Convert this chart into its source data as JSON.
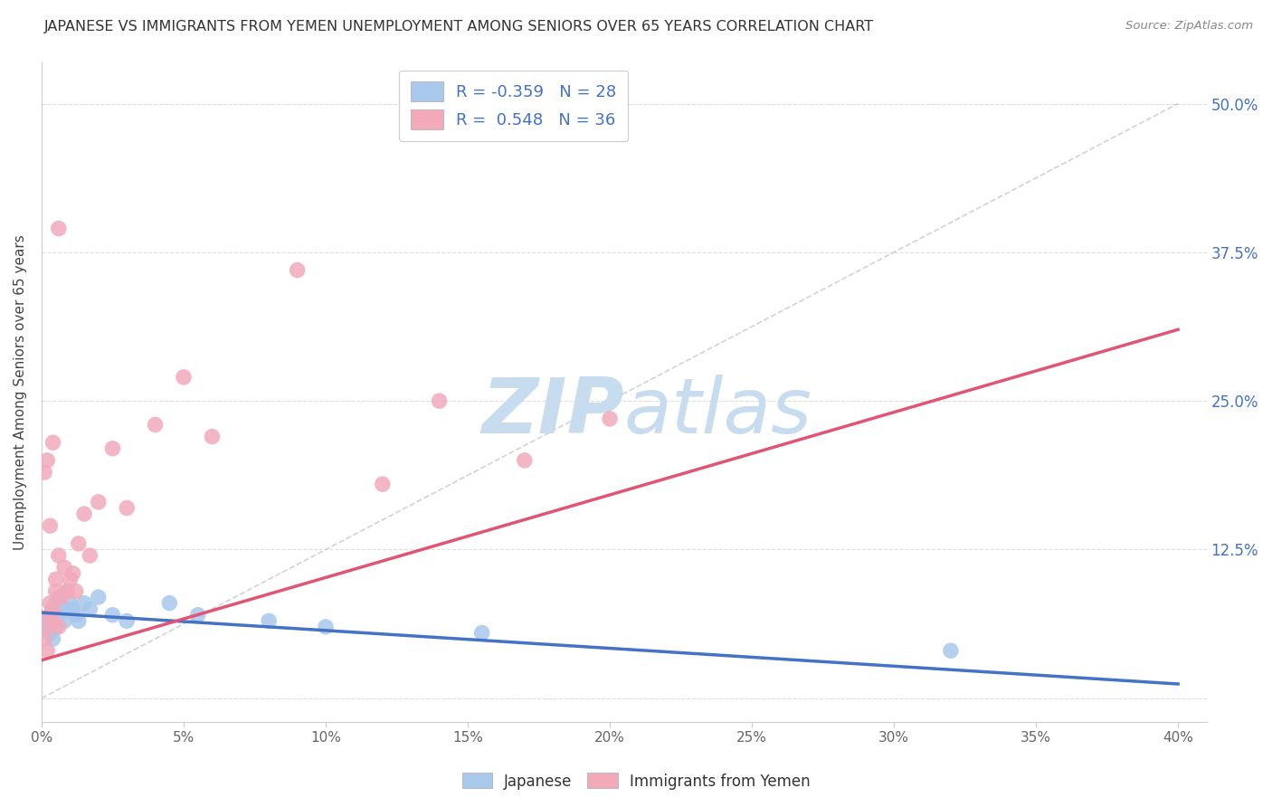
{
  "title": "JAPANESE VS IMMIGRANTS FROM YEMEN UNEMPLOYMENT AMONG SENIORS OVER 65 YEARS CORRELATION CHART",
  "source_text": "Source: ZipAtlas.com",
  "ylabel": "Unemployment Among Seniors over 65 years",
  "xlim": [
    0.0,
    0.41
  ],
  "ylim": [
    -0.02,
    0.535
  ],
  "xtick_vals": [
    0.0,
    0.05,
    0.1,
    0.15,
    0.2,
    0.25,
    0.3,
    0.35,
    0.4
  ],
  "ytick_right_vals": [
    0.0,
    0.125,
    0.25,
    0.375,
    0.5
  ],
  "ytick_right_labels": [
    "",
    "12.5%",
    "25.0%",
    "37.5%",
    "50.0%"
  ],
  "legend_blue_label": "Japanese",
  "legend_pink_label": "Immigrants from Yemen",
  "R_blue": -0.359,
  "N_blue": 28,
  "R_pink": 0.548,
  "N_pink": 36,
  "blue_color": "#A8C8EC",
  "pink_color": "#F2AABB",
  "blue_line_color": "#4472C4",
  "pink_line_color": "#E05575",
  "diag_color": "#C0C0C0",
  "watermark_color": "#C8DCF0",
  "background_color": "#FFFFFF",
  "grid_color": "#DDDDDD",
  "blue_trend_x0": 0.0,
  "blue_trend_y0": 0.072,
  "blue_trend_x1": 0.4,
  "blue_trend_y1": 0.012,
  "pink_trend_x0": 0.0,
  "pink_trend_y0": 0.032,
  "pink_trend_x1": 0.4,
  "pink_trend_y1": 0.31,
  "jap_x": [
    0.001,
    0.002,
    0.003,
    0.003,
    0.004,
    0.004,
    0.005,
    0.005,
    0.006,
    0.006,
    0.007,
    0.008,
    0.009,
    0.01,
    0.011,
    0.012,
    0.013,
    0.015,
    0.017,
    0.02,
    0.025,
    0.03,
    0.045,
    0.055,
    0.08,
    0.1,
    0.155,
    0.32
  ],
  "jap_y": [
    0.06,
    0.065,
    0.07,
    0.055,
    0.075,
    0.05,
    0.08,
    0.06,
    0.085,
    0.07,
    0.075,
    0.065,
    0.09,
    0.08,
    0.075,
    0.07,
    0.065,
    0.08,
    0.075,
    0.085,
    0.07,
    0.065,
    0.08,
    0.07,
    0.065,
    0.06,
    0.055,
    0.04
  ],
  "yem_x": [
    0.001,
    0.002,
    0.002,
    0.003,
    0.003,
    0.004,
    0.004,
    0.005,
    0.005,
    0.006,
    0.006,
    0.007,
    0.008,
    0.009,
    0.01,
    0.011,
    0.012,
    0.013,
    0.015,
    0.017,
    0.02,
    0.025,
    0.03,
    0.04,
    0.05,
    0.06,
    0.09,
    0.12,
    0.14,
    0.17,
    0.2,
    0.001,
    0.003,
    0.002,
    0.004,
    0.006
  ],
  "yem_y": [
    0.05,
    0.06,
    0.04,
    0.07,
    0.08,
    0.065,
    0.075,
    0.09,
    0.1,
    0.12,
    0.06,
    0.085,
    0.11,
    0.09,
    0.1,
    0.105,
    0.09,
    0.13,
    0.155,
    0.12,
    0.165,
    0.21,
    0.16,
    0.23,
    0.27,
    0.22,
    0.36,
    0.18,
    0.25,
    0.2,
    0.235,
    0.19,
    0.145,
    0.2,
    0.215,
    0.395
  ]
}
